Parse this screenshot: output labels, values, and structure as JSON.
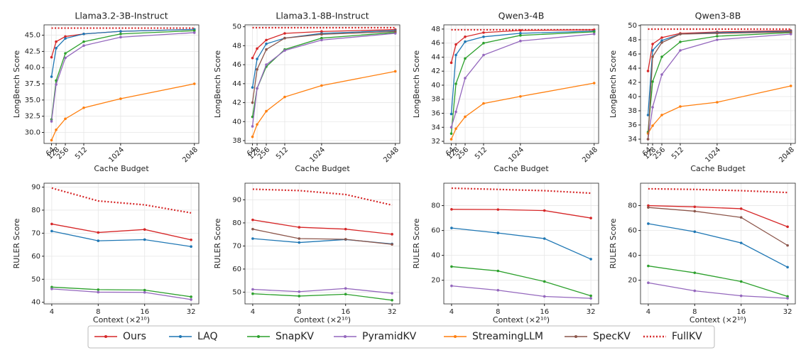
{
  "chart_data": [
    {
      "type": "line",
      "title": "Llama3.2-3B-Instruct",
      "xlabel": "Cache Budget",
      "ylabel": "LongBench Score",
      "x": [
        64,
        128,
        256,
        512,
        1024,
        2048
      ],
      "xlim": [
        -40,
        2110
      ],
      "xticks": [
        64,
        128,
        256,
        512,
        1024,
        2048
      ],
      "ylim": [
        28.3,
        46.6
      ],
      "yticks": [
        {
          "value": 30,
          "label": "30.0"
        },
        32.5,
        {
          "value": 35,
          "label": "35.0"
        },
        37.5,
        {
          "value": 40,
          "label": "40.0"
        },
        42.5,
        {
          "value": 45,
          "label": "45.0"
        }
      ],
      "grid": true,
      "series": [
        {
          "name": "Ours",
          "color": "#d62728",
          "values": [
            41.6,
            44.0,
            44.8,
            45.2,
            45.6,
            45.9
          ]
        },
        {
          "name": "LAQ",
          "color": "#1f77b4",
          "values": [
            38.6,
            43.0,
            44.5,
            45.2,
            45.6,
            45.9
          ]
        },
        {
          "name": "SnapKV",
          "color": "#2ca02c",
          "values": [
            32.0,
            38.0,
            42.2,
            44.0,
            45.2,
            45.7
          ]
        },
        {
          "name": "PyramidKV",
          "color": "#9467bd",
          "values": [
            31.7,
            37.4,
            41.5,
            43.4,
            44.7,
            45.4
          ]
        },
        {
          "name": "StreamingLLM",
          "color": "#ff7f0e",
          "values": [
            28.8,
            30.4,
            32.1,
            33.8,
            35.2,
            37.5
          ]
        },
        {
          "name": "FullKV",
          "color": "#d62728",
          "style": "dotted",
          "values": [
            46.1,
            46.1,
            46.1,
            46.1,
            46.1,
            46.1
          ]
        }
      ]
    },
    {
      "type": "line",
      "title": "Llama3.1-8B-Instruct",
      "xlabel": "Cache Budget",
      "ylabel": "LongBench Score",
      "x": [
        64,
        128,
        256,
        512,
        1024,
        2048
      ],
      "xlim": [
        -40,
        2110
      ],
      "xticks": [
        64,
        128,
        256,
        512,
        1024,
        2048
      ],
      "ylim": [
        37.7,
        50.2
      ],
      "yticks": [
        38,
        40,
        42,
        44,
        46,
        48,
        50
      ],
      "grid": true,
      "series": [
        {
          "name": "Ours",
          "color": "#d62728",
          "values": [
            46.7,
            47.7,
            48.6,
            49.3,
            49.5,
            49.7
          ]
        },
        {
          "name": "LAQ",
          "color": "#1f77b4",
          "values": [
            43.6,
            46.6,
            48.2,
            48.8,
            49.3,
            49.6
          ]
        },
        {
          "name": "SnapKV",
          "color": "#2ca02c",
          "values": [
            40.5,
            43.5,
            45.8,
            47.6,
            48.8,
            49.4
          ]
        },
        {
          "name": "PyramidKV",
          "color": "#9467bd",
          "values": [
            39.5,
            43.5,
            46.0,
            47.5,
            48.6,
            49.3
          ]
        },
        {
          "name": "StreamingLLM",
          "color": "#ff7f0e",
          "values": [
            38.4,
            39.7,
            41.1,
            42.6,
            43.8,
            45.3
          ]
        },
        {
          "name": "SpecKV",
          "color": "#8c564b",
          "values": [
            42.0,
            45.5,
            47.6,
            48.8,
            49.2,
            49.5
          ]
        },
        {
          "name": "FullKV",
          "color": "#d62728",
          "style": "dotted",
          "values": [
            49.9,
            49.9,
            49.9,
            49.9,
            49.9,
            49.9
          ]
        }
      ]
    },
    {
      "type": "line",
      "title": "Qwen3-4B",
      "xlabel": "Cache Budget",
      "ylabel": "LongBench Score",
      "x": [
        64,
        128,
        256,
        512,
        1024,
        2048
      ],
      "xlim": [
        -40,
        2110
      ],
      "xticks": [
        64,
        128,
        256,
        512,
        1024,
        2048
      ],
      "ylim": [
        31.7,
        48.6
      ],
      "yticks": [
        32,
        34,
        36,
        38,
        40,
        42,
        44,
        46,
        48
      ],
      "grid": true,
      "series": [
        {
          "name": "Ours",
          "color": "#d62728",
          "values": [
            43.2,
            45.8,
            46.9,
            47.5,
            47.8,
            47.9
          ]
        },
        {
          "name": "LAQ",
          "color": "#1f77b4",
          "values": [
            35.9,
            44.3,
            46.2,
            46.9,
            47.4,
            47.7
          ]
        },
        {
          "name": "SnapKV",
          "color": "#2ca02c",
          "values": [
            33.1,
            40.2,
            43.8,
            46.0,
            47.1,
            47.6
          ]
        },
        {
          "name": "PyramidKV",
          "color": "#9467bd",
          "values": [
            34.0,
            36.2,
            41.0,
            44.3,
            46.3,
            47.3
          ]
        },
        {
          "name": "StreamingLLM",
          "color": "#ff7f0e",
          "values": [
            32.3,
            33.8,
            35.5,
            37.4,
            38.4,
            40.3
          ]
        },
        {
          "name": "FullKV",
          "color": "#d62728",
          "style": "dotted",
          "values": [
            47.9,
            47.9,
            47.9,
            47.9,
            47.9,
            47.9
          ]
        }
      ]
    },
    {
      "type": "line",
      "title": "Qwen3-8B",
      "xlabel": "Cache Budget",
      "ylabel": "LongBench Score",
      "x": [
        64,
        128,
        256,
        512,
        1024,
        2048
      ],
      "xlim": [
        -40,
        2110
      ],
      "xticks": [
        64,
        128,
        256,
        512,
        1024,
        2048
      ],
      "ylim": [
        33.4,
        50.1
      ],
      "yticks": [
        34,
        36,
        38,
        40,
        42,
        44,
        46,
        48,
        50
      ],
      "grid": true,
      "series": [
        {
          "name": "Ours",
          "color": "#d62728",
          "values": [
            43.6,
            47.4,
            48.3,
            48.9,
            49.1,
            49.3
          ]
        },
        {
          "name": "LAQ",
          "color": "#1f77b4",
          "values": [
            37.4,
            46.5,
            47.9,
            48.8,
            49.0,
            49.2
          ]
        },
        {
          "name": "SnapKV",
          "color": "#2ca02c",
          "values": [
            35.0,
            42.1,
            45.6,
            47.7,
            48.5,
            49.0
          ]
        },
        {
          "name": "PyramidKV",
          "color": "#9467bd",
          "values": [
            34.0,
            38.5,
            43.1,
            46.5,
            48.0,
            48.8
          ]
        },
        {
          "name": "StreamingLLM",
          "color": "#ff7f0e",
          "values": [
            34.8,
            35.9,
            37.4,
            38.6,
            39.2,
            41.5
          ]
        },
        {
          "name": "SpecKV",
          "color": "#8c564b",
          "values": [
            34.0,
            45.6,
            47.6,
            48.8,
            48.9,
            49.1
          ]
        },
        {
          "name": "FullKV",
          "color": "#d62728",
          "style": "dotted",
          "values": [
            49.5,
            49.5,
            49.5,
            49.5,
            49.5,
            49.5
          ]
        }
      ]
    },
    {
      "type": "line",
      "xlabel": "Context (×2¹⁰)",
      "ylabel": "RULER Score",
      "categories": [
        "4",
        "8",
        "16",
        "32"
      ],
      "ylim": [
        39.3,
        91.7
      ],
      "yticks": [
        40,
        50,
        60,
        70,
        80,
        90
      ],
      "grid": true,
      "series": [
        {
          "name": "FullKV",
          "color": "#d62728",
          "style": "dotted",
          "values": [
            89.6,
            84.0,
            82.3,
            78.8
          ]
        },
        {
          "name": "Ours",
          "color": "#d62728",
          "values": [
            74.0,
            70.3,
            71.6,
            67.1
          ]
        },
        {
          "name": "LAQ",
          "color": "#1f77b4",
          "values": [
            70.9,
            66.7,
            67.2,
            64.2
          ]
        },
        {
          "name": "SnapKV",
          "color": "#2ca02c",
          "values": [
            46.6,
            45.5,
            45.3,
            42.4
          ]
        },
        {
          "name": "PyramidKV",
          "color": "#9467bd",
          "values": [
            45.8,
            44.4,
            44.3,
            41.2
          ]
        }
      ]
    },
    {
      "type": "line",
      "xlabel": "Context (×2¹⁰)",
      "ylabel": "RULER Score",
      "categories": [
        "4",
        "8",
        "16",
        "32"
      ],
      "ylim": [
        44.9,
        97.2
      ],
      "yticks": [
        50,
        60,
        70,
        80,
        90
      ],
      "grid": true,
      "series": [
        {
          "name": "FullKV",
          "color": "#d62728",
          "style": "dotted",
          "values": [
            94.6,
            94.0,
            92.3,
            87.7
          ]
        },
        {
          "name": "Ours",
          "color": "#d62728",
          "values": [
            81.3,
            78.1,
            77.3,
            75.1
          ]
        },
        {
          "name": "LAQ",
          "color": "#1f77b4",
          "values": [
            73.2,
            71.5,
            72.8,
            70.9
          ]
        },
        {
          "name": "SpecKV",
          "color": "#8c564b",
          "values": [
            77.3,
            73.2,
            72.9,
            70.7
          ]
        },
        {
          "name": "SnapKV",
          "color": "#2ca02c",
          "values": [
            49.3,
            48.3,
            49.1,
            46.5
          ]
        },
        {
          "name": "PyramidKV",
          "color": "#9467bd",
          "values": [
            51.2,
            50.2,
            51.6,
            49.5
          ]
        }
      ]
    },
    {
      "type": "line",
      "xlabel": "Context (×2¹⁰)",
      "ylabel": "RULER Score",
      "categories": [
        "4",
        "8",
        "16",
        "32"
      ],
      "ylim": [
        1,
        98
      ],
      "yticks": [
        20,
        40,
        60,
        80
      ],
      "grid": true,
      "series": [
        {
          "name": "FullKV",
          "color": "#d62728",
          "style": "dotted",
          "values": [
            94,
            93,
            92,
            90
          ]
        },
        {
          "name": "Ours",
          "color": "#d62728",
          "values": [
            77,
            76.8,
            76,
            70
          ]
        },
        {
          "name": "LAQ",
          "color": "#1f77b4",
          "values": [
            62,
            58,
            53.5,
            37
          ]
        },
        {
          "name": "SnapKV",
          "color": "#2ca02c",
          "values": [
            31,
            27.5,
            19,
            7.5
          ]
        },
        {
          "name": "PyramidKV",
          "color": "#9467bd",
          "values": [
            15.5,
            12,
            7,
            5.5
          ]
        }
      ]
    },
    {
      "type": "line",
      "xlabel": "Context (×2¹⁰)",
      "ylabel": "RULER Score",
      "categories": [
        "4",
        "8",
        "16",
        "32"
      ],
      "ylim": [
        1,
        98
      ],
      "yticks": [
        20,
        40,
        60,
        80
      ],
      "grid": true,
      "series": [
        {
          "name": "FullKV",
          "color": "#d62728",
          "style": "dotted",
          "values": [
            93.5,
            93,
            92,
            90.5
          ]
        },
        {
          "name": "Ours",
          "color": "#d62728",
          "values": [
            80,
            79,
            77.5,
            63
          ]
        },
        {
          "name": "SpecKV",
          "color": "#8c564b",
          "values": [
            78.5,
            75.5,
            70.5,
            48
          ]
        },
        {
          "name": "LAQ",
          "color": "#1f77b4",
          "values": [
            65.5,
            59,
            50,
            30.5
          ]
        },
        {
          "name": "SnapKV",
          "color": "#2ca02c",
          "values": [
            31.5,
            26,
            19,
            7
          ]
        },
        {
          "name": "PyramidKV",
          "color": "#9467bd",
          "values": [
            18,
            11.5,
            7.5,
            5.5
          ]
        }
      ]
    }
  ]
}
